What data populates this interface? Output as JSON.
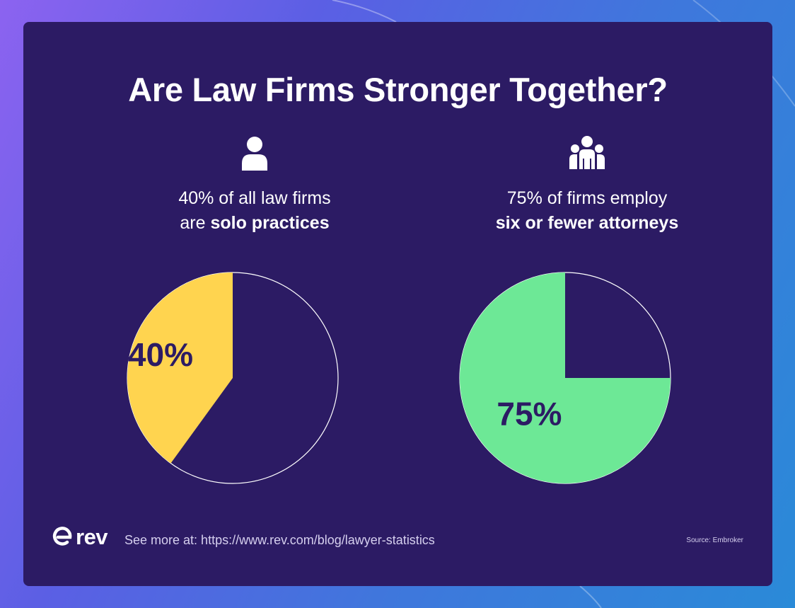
{
  "title": "Are Law Firms Stronger Together?",
  "colors": {
    "background_card": "#2c1b64",
    "solo_slice": "#ffd44f",
    "small_slice": "#6de896",
    "pie_label": "#2c1b64",
    "text": "#ffffff"
  },
  "panels": [
    {
      "icon": "person-icon",
      "caption_line1": "40% of all law firms",
      "caption_line2_prefix": "are ",
      "caption_line2_bold": "solo practices"
    },
    {
      "icon": "group-icon",
      "caption_line1": "75% of firms employ",
      "caption_line2_prefix": "",
      "caption_line2_bold": "six or fewer attorneys"
    }
  ],
  "chart_data": [
    {
      "type": "pie",
      "values": [
        40,
        60
      ],
      "labels": [
        "40%",
        ""
      ],
      "colors": [
        "#ffd44f",
        "#2c1b64"
      ],
      "start": "12 o'clock",
      "direction": "counterclockwise"
    },
    {
      "type": "pie",
      "values": [
        75,
        25
      ],
      "labels": [
        "75%",
        ""
      ],
      "colors": [
        "#6de896",
        "#2c1b64"
      ],
      "start": "3 o'clock",
      "direction": "clockwise"
    }
  ],
  "footer": {
    "logo_text": "rev",
    "see_more": "See more at: https://www.rev.com/blog/lawyer-statistics",
    "source": "Source: Embroker"
  }
}
